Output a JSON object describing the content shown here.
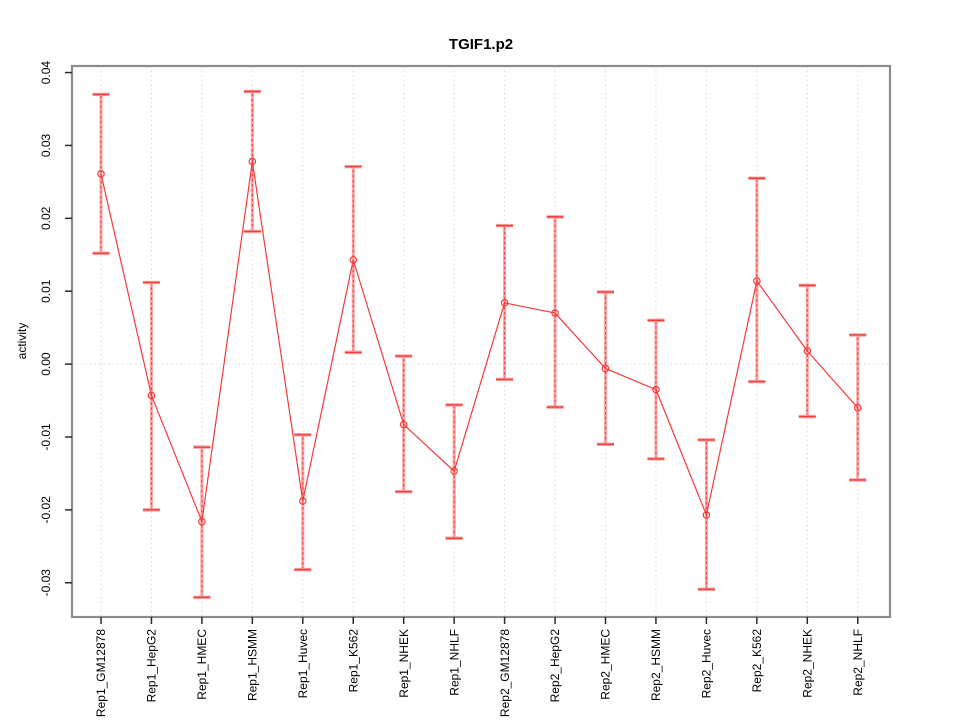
{
  "chart_data": {
    "type": "scatter",
    "title": "TGIF1.p2",
    "xlabel": "",
    "ylabel": "activity",
    "categories": [
      "Rep1_GM12878",
      "Rep1_HepG2",
      "Rep1_HMEC",
      "Rep1_HSMM",
      "Rep1_Huvec",
      "Rep1_K562",
      "Rep1_NHEK",
      "Rep1_NHLF",
      "Rep2_GM12878",
      "Rep2_HepG2",
      "Rep2_HMEC",
      "Rep2_HSMM",
      "Rep2_Huvec",
      "Rep2_K562",
      "Rep2_NHEK",
      "Rep2_NHLF"
    ],
    "series": [
      {
        "name": "activity",
        "values": [
          0.0261,
          -0.0043,
          -0.0216,
          0.0278,
          -0.0188,
          0.0143,
          -0.0083,
          -0.0147,
          0.0084,
          0.007,
          -0.0006,
          -0.0035,
          -0.0207,
          0.0114,
          0.0018,
          -0.006
        ],
        "ci_low": [
          0.0152,
          -0.02,
          -0.032,
          0.0182,
          -0.0282,
          0.0016,
          -0.0175,
          -0.0239,
          -0.0021,
          -0.0059,
          -0.011,
          -0.013,
          -0.0309,
          -0.0024,
          -0.0072,
          -0.0159
        ],
        "ci_high": [
          0.037,
          0.0112,
          -0.0114,
          0.0374,
          -0.0097,
          0.0271,
          0.0011,
          -0.0056,
          0.019,
          0.0202,
          0.0099,
          0.006,
          -0.0104,
          0.0255,
          0.0108,
          0.004
        ]
      }
    ],
    "yticks": [
      -0.03,
      -0.02,
      -0.01,
      0.0,
      0.01,
      0.02,
      0.03,
      0.04
    ],
    "ylim": [
      -0.0347,
      0.0409
    ],
    "grid": {
      "vertical_dotted_per_category": true,
      "horizontal_dotted_zero_line": true
    },
    "legend": "none",
    "marker": "open-circle",
    "error_bars": true
  },
  "colors": {
    "series": "#f23b3b",
    "error_bar_fill": "#f9a3a3",
    "grid": "#d9d9d9",
    "frame": "#8c8c8c",
    "tick": "#2b2b2b",
    "text": "#000000",
    "background": "#ffffff"
  }
}
